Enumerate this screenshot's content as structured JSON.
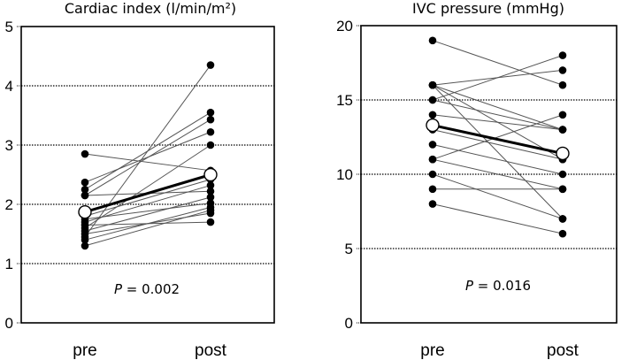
{
  "chart_data": [
    {
      "type": "line",
      "title": "Cardiac index (l/min/m²)",
      "xlabel": "",
      "ylabel": "",
      "categories": [
        "pre",
        "post"
      ],
      "ylim": [
        0,
        5
      ],
      "yticks": [
        "0",
        "1",
        "2",
        "3",
        "4",
        "5"
      ],
      "grid": "horizontal dotted",
      "annotation": {
        "label": "P",
        "text": " = 0.002"
      },
      "mean": {
        "name": "mean",
        "values": [
          1.87,
          2.5
        ]
      },
      "series": [
        {
          "name": "patient",
          "values": [
            1.45,
            4.35
          ]
        },
        {
          "name": "patient",
          "values": [
            2.25,
            3.55
          ]
        },
        {
          "name": "patient",
          "values": [
            2.15,
            3.43
          ]
        },
        {
          "name": "patient",
          "values": [
            2.37,
            3.22
          ]
        },
        {
          "name": "patient",
          "values": [
            1.6,
            3.0
          ]
        },
        {
          "name": "patient",
          "values": [
            2.85,
            2.57
          ]
        },
        {
          "name": "patient",
          "values": [
            1.8,
            2.42
          ]
        },
        {
          "name": "patient",
          "values": [
            1.7,
            2.32
          ]
        },
        {
          "name": "patient",
          "values": [
            2.15,
            2.22
          ]
        },
        {
          "name": "patient",
          "values": [
            1.55,
            2.12
          ]
        },
        {
          "name": "patient",
          "values": [
            1.75,
            2.02
          ]
        },
        {
          "name": "patient",
          "values": [
            1.4,
            1.95
          ]
        },
        {
          "name": "patient",
          "values": [
            1.3,
            1.9
          ]
        },
        {
          "name": "patient",
          "values": [
            1.5,
            1.85
          ]
        },
        {
          "name": "patient",
          "values": [
            1.65,
            1.7
          ]
        }
      ]
    },
    {
      "type": "line",
      "title": "IVC pressure (mmHg)",
      "xlabel": "",
      "ylabel": "",
      "categories": [
        "pre",
        "post"
      ],
      "ylim": [
        0,
        20
      ],
      "yticks": [
        "0",
        "5",
        "10",
        "15",
        "20"
      ],
      "grid": "horizontal dotted",
      "annotation": {
        "label": "P",
        "text": " = 0.016"
      },
      "mean": {
        "name": "mean",
        "values": [
          13.3,
          11.4
        ]
      },
      "series": [
        {
          "name": "patient",
          "values": [
            19,
            16
          ]
        },
        {
          "name": "patient",
          "values": [
            16,
            17
          ]
        },
        {
          "name": "patient",
          "values": [
            15,
            18
          ]
        },
        {
          "name": "patient",
          "values": [
            16,
            13
          ]
        },
        {
          "name": "patient",
          "values": [
            16,
            7
          ]
        },
        {
          "name": "patient",
          "values": [
            15,
            13
          ]
        },
        {
          "name": "patient",
          "values": [
            14,
            13
          ]
        },
        {
          "name": "patient",
          "values": [
            16,
            11
          ]
        },
        {
          "name": "patient",
          "values": [
            13,
            11
          ]
        },
        {
          "name": "patient",
          "values": [
            12,
            10
          ]
        },
        {
          "name": "patient",
          "values": [
            11,
            14
          ]
        },
        {
          "name": "patient",
          "values": [
            11,
            9
          ]
        },
        {
          "name": "patient",
          "values": [
            10,
            7
          ]
        },
        {
          "name": "patient",
          "values": [
            9,
            9
          ]
        },
        {
          "name": "patient",
          "values": [
            8,
            6
          ]
        }
      ]
    }
  ]
}
